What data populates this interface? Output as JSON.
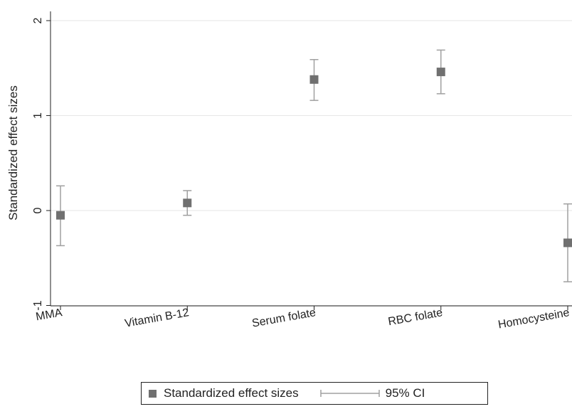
{
  "chart_data": {
    "type": "scatter",
    "ylabel": "Standardized effect sizes",
    "xlabel": "",
    "ylim": [
      -1.2,
      2.15
    ],
    "yticks": [
      -1,
      0,
      1,
      2
    ],
    "grid": true,
    "legend_position": "bottom",
    "categories": [
      "MMA",
      "Vitamin B-12",
      "Serum folate",
      "RBC folate",
      "Homocysteine"
    ],
    "series": [
      {
        "name": "Standardized effect sizes",
        "values": [
          -0.05,
          0.08,
          1.38,
          1.46,
          -0.34
        ],
        "color": "#707070"
      },
      {
        "name": "95% CI",
        "lower": [
          -0.37,
          -0.05,
          1.16,
          1.23,
          -0.75
        ],
        "upper": [
          0.26,
          0.21,
          1.59,
          1.69,
          0.07
        ],
        "color": "#a0a0a0"
      }
    ]
  }
}
